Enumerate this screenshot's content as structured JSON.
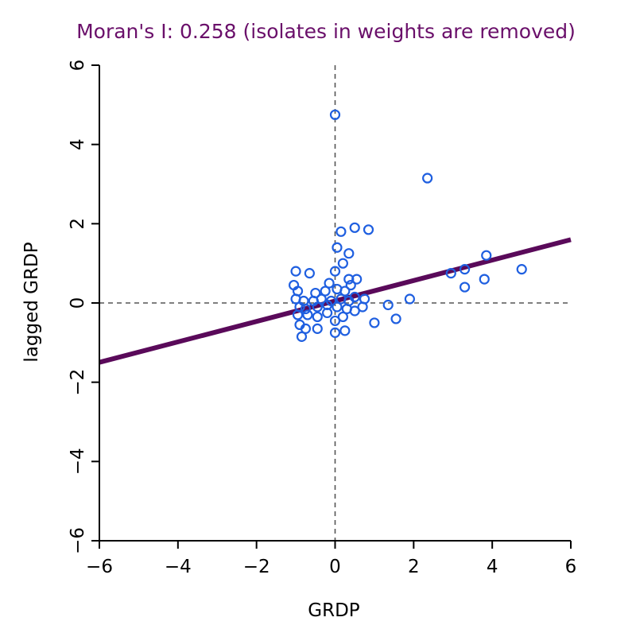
{
  "chart_data": {
    "type": "scatter",
    "title": "Moran's I: 0.258 (isolates in weights are removed)",
    "xlabel": "GRDP",
    "ylabel": "lagged GRDP",
    "xlim": [
      -6,
      6
    ],
    "ylim": [
      -6,
      6
    ],
    "xticks": [
      -6,
      -4,
      -2,
      0,
      2,
      4,
      6
    ],
    "yticks": [
      -6,
      -4,
      -2,
      0,
      2,
      4,
      6
    ],
    "xtick_labels": [
      "−6",
      "−4",
      "−2",
      "0",
      "2",
      "4",
      "6"
    ],
    "ytick_labels": [
      "−6",
      "−4",
      "−2",
      "0",
      "2",
      "4",
      "6"
    ],
    "reference_lines": {
      "x": 0,
      "y": 0,
      "style": "dashed"
    },
    "regression_line": {
      "slope": 0.258,
      "intercept": 0.05
    },
    "colors": {
      "points": "#1f5fe0",
      "line": "#5a0a5a",
      "title": "#6a0f6a"
    },
    "points": [
      {
        "x": 0.0,
        "y": 4.75
      },
      {
        "x": 2.35,
        "y": 3.15
      },
      {
        "x": 0.15,
        "y": 1.8
      },
      {
        "x": 0.5,
        "y": 1.9
      },
      {
        "x": 0.85,
        "y": 1.85
      },
      {
        "x": 0.05,
        "y": 1.4
      },
      {
        "x": 0.35,
        "y": 1.25
      },
      {
        "x": 0.2,
        "y": 1.0
      },
      {
        "x": -0.65,
        "y": 0.75
      },
      {
        "x": -1.0,
        "y": 0.8
      },
      {
        "x": 0.0,
        "y": 0.8
      },
      {
        "x": 3.85,
        "y": 1.2
      },
      {
        "x": 4.75,
        "y": 0.85
      },
      {
        "x": 3.3,
        "y": 0.85
      },
      {
        "x": 2.95,
        "y": 0.75
      },
      {
        "x": 3.8,
        "y": 0.6
      },
      {
        "x": 3.3,
        "y": 0.4
      },
      {
        "x": 0.35,
        "y": 0.6
      },
      {
        "x": 0.55,
        "y": 0.6
      },
      {
        "x": -0.15,
        "y": 0.5
      },
      {
        "x": 0.4,
        "y": 0.45
      },
      {
        "x": -1.05,
        "y": 0.45
      },
      {
        "x": -0.95,
        "y": 0.3
      },
      {
        "x": -0.5,
        "y": 0.25
      },
      {
        "x": -0.25,
        "y": 0.3
      },
      {
        "x": 0.05,
        "y": 0.35
      },
      {
        "x": 0.25,
        "y": 0.3
      },
      {
        "x": -0.35,
        "y": 0.1
      },
      {
        "x": -0.55,
        "y": 0.05
      },
      {
        "x": -0.8,
        "y": 0.05
      },
      {
        "x": -1.0,
        "y": 0.1
      },
      {
        "x": -0.1,
        "y": 0.05
      },
      {
        "x": 0.15,
        "y": 0.1
      },
      {
        "x": 0.35,
        "y": 0.05
      },
      {
        "x": 0.5,
        "y": 0.15
      },
      {
        "x": 0.75,
        "y": 0.1
      },
      {
        "x": -0.9,
        "y": -0.1
      },
      {
        "x": -0.75,
        "y": -0.15
      },
      {
        "x": -0.45,
        "y": -0.1
      },
      {
        "x": -0.2,
        "y": -0.05
      },
      {
        "x": 0.05,
        "y": -0.1
      },
      {
        "x": 0.3,
        "y": -0.15
      },
      {
        "x": 0.5,
        "y": -0.2
      },
      {
        "x": 0.7,
        "y": -0.1
      },
      {
        "x": 1.35,
        "y": -0.05
      },
      {
        "x": 1.9,
        "y": 0.1
      },
      {
        "x": -0.95,
        "y": -0.3
      },
      {
        "x": -0.7,
        "y": -0.3
      },
      {
        "x": -0.45,
        "y": -0.35
      },
      {
        "x": -0.2,
        "y": -0.25
      },
      {
        "x": 0.2,
        "y": -0.35
      },
      {
        "x": -0.9,
        "y": -0.55
      },
      {
        "x": -0.45,
        "y": -0.65
      },
      {
        "x": -0.75,
        "y": -0.65
      },
      {
        "x": 0.0,
        "y": -0.45
      },
      {
        "x": 0.25,
        "y": -0.7
      },
      {
        "x": 0.0,
        "y": -0.75
      },
      {
        "x": -0.85,
        "y": -0.85
      },
      {
        "x": 1.0,
        "y": -0.5
      },
      {
        "x": 1.55,
        "y": -0.4
      }
    ]
  }
}
